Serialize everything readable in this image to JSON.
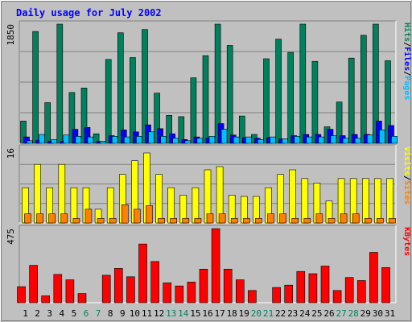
{
  "chart_data": {
    "type": "bar",
    "title": "Daily usage for July 2002",
    "categories": [
      "1",
      "2",
      "3",
      "4",
      "5",
      "6",
      "7",
      "8",
      "9",
      "10",
      "11",
      "12",
      "13",
      "14",
      "15",
      "16",
      "17",
      "18",
      "19",
      "20",
      "21",
      "22",
      "23",
      "24",
      "25",
      "26",
      "27",
      "28",
      "29",
      "30",
      "31"
    ],
    "weekend_days": [
      "6",
      "7",
      "13",
      "14",
      "20",
      "21",
      "27",
      "28"
    ],
    "panels": [
      {
        "id": "top",
        "max_label": "1850",
        "ymax": 1850,
        "grid": true,
        "legend_right": [
          "Pages",
          "/",
          "Files",
          "/",
          "Hits"
        ],
        "series": [
          {
            "name": "Hits",
            "color": "#00805c",
            "values": [
              350,
              1760,
              640,
              1880,
              800,
              870,
              150,
              1320,
              1740,
              1350,
              1790,
              790,
              440,
              420,
              1030,
              1380,
              2450,
              1540,
              430,
              140,
              1330,
              1640,
              1430,
              2180,
              1290,
              260,
              650,
              1340,
              1700,
              2960,
              1300
            ]
          },
          {
            "name": "Files",
            "color": "#0000ff",
            "values": [
              100,
              50,
              30,
              30,
              220,
              250,
              30,
              120,
              210,
              180,
              290,
              230,
              150,
              60,
              100,
              80,
              310,
              130,
              90,
              80,
              90,
              70,
              120,
              140,
              140,
              220,
              120,
              140,
              140,
              350,
              280
            ]
          },
          {
            "name": "Pages",
            "color": "#00c0ff",
            "values": [
              40,
              140,
              60,
              130,
              110,
              100,
              30,
              110,
              100,
              110,
              180,
              110,
              80,
              40,
              80,
              110,
              220,
              100,
              100,
              60,
              100,
              70,
              110,
              100,
              100,
              120,
              80,
              80,
              130,
              210,
              110
            ]
          }
        ]
      },
      {
        "id": "middle",
        "max_label": "16",
        "ymax": 16,
        "grid": true,
        "legend_right": [
          "Sites",
          "/",
          "Visits"
        ],
        "series": [
          {
            "name": "Visits",
            "color": "#ffff00",
            "values": [
              7.7,
              12.8,
              7.7,
              12.8,
              7.7,
              7.7,
              3.0,
              7.7,
              10.6,
              13.6,
              15.3,
              10.6,
              7.7,
              6.1,
              7.7,
              11.6,
              12.3,
              6.1,
              5.8,
              5.8,
              7.7,
              10.6,
              11.6,
              9.7,
              8.7,
              4.8,
              9.7,
              9.7,
              9.7,
              9.7,
              9.7
            ]
          },
          {
            "name": "Sites",
            "color": "#ff8000",
            "values": [
              2.0,
              2.0,
              2.0,
              2.0,
              1.0,
              3.0,
              1.0,
              1.0,
              4.0,
              3.0,
              3.8,
              1.0,
              1.0,
              1.0,
              1.0,
              2.0,
              2.0,
              1.0,
              1.0,
              1.0,
              2.0,
              2.0,
              1.0,
              1.0,
              2.0,
              1.0,
              2.0,
              2.0,
              1.0,
              1.0,
              1.0
            ]
          }
        ]
      },
      {
        "id": "bottom",
        "max_label": "475",
        "ymax": 475,
        "grid": false,
        "legend_right": [
          "KBytes"
        ],
        "series": [
          {
            "name": "KBytes",
            "color": "#ff0000",
            "values": [
              105,
              245,
              45,
              185,
              150,
              60,
              0,
              180,
              225,
              170,
              385,
              270,
              130,
              110,
              135,
              220,
              495,
              220,
              150,
              80,
              0,
              100,
              115,
              205,
              190,
              240,
              80,
              165,
              145,
              330,
              230
            ]
          }
        ]
      }
    ]
  },
  "colors": {
    "frame": "#c0c0c0",
    "plot": "#c0c0c0",
    "title": "#0000ff",
    "grid": "#808080",
    "axis_text": "#000000",
    "weekend_text": "#00805c"
  }
}
